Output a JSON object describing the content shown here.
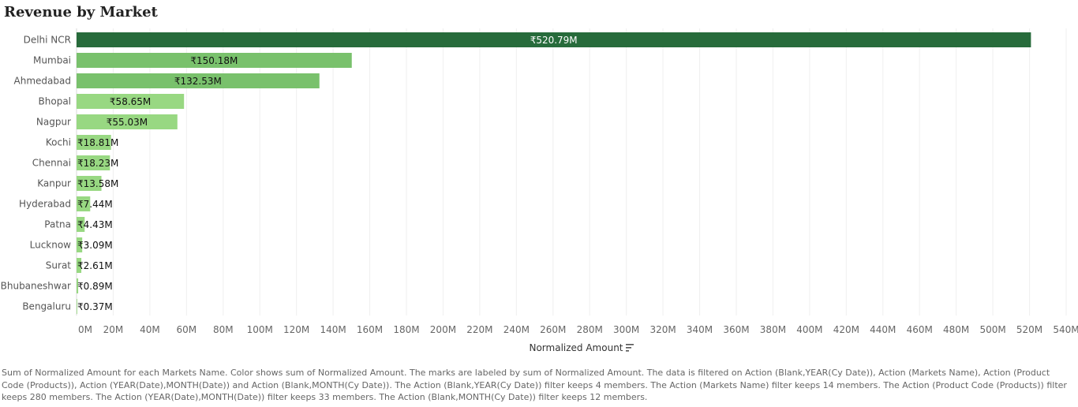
{
  "chart_data": {
    "type": "bar",
    "orientation": "horizontal",
    "title": "Revenue by Market",
    "categories": [
      "Delhi NCR",
      "Mumbai",
      "Ahmedabad",
      "Bhopal",
      "Nagpur",
      "Kochi",
      "Chennai",
      "Kanpur",
      "Hyderabad",
      "Patna",
      "Lucknow",
      "Surat",
      "Bhubaneshwar",
      "Bengaluru"
    ],
    "values": [
      520.79,
      150.18,
      132.53,
      58.65,
      55.03,
      18.81,
      18.23,
      13.58,
      7.44,
      4.43,
      3.09,
      2.61,
      0.89,
      0.37
    ],
    "data_labels": [
      "₹520.79M",
      "₹150.18M",
      "₹132.53M",
      "₹58.65M",
      "₹55.03M",
      "₹18.81M",
      "₹18.23M",
      "₹13.58M",
      "₹7.44M",
      "₹4.43M",
      "₹3.09M",
      "₹2.61M",
      "₹0.89M",
      "₹0.37M"
    ],
    "xlabel": "Normalized Amount",
    "ylabel": "",
    "xlim": [
      0,
      540
    ],
    "xticks": [
      0,
      20,
      40,
      60,
      80,
      100,
      120,
      140,
      160,
      180,
      200,
      220,
      240,
      260,
      280,
      300,
      320,
      340,
      360,
      380,
      400,
      420,
      440,
      460,
      480,
      500,
      520,
      540
    ],
    "xtick_labels": [
      "0M",
      "20M",
      "40M",
      "60M",
      "80M",
      "100M",
      "120M",
      "140M",
      "160M",
      "180M",
      "200M",
      "220M",
      "240M",
      "260M",
      "280M",
      "300M",
      "320M",
      "340M",
      "360M",
      "380M",
      "400M",
      "420M",
      "440M",
      "460M",
      "480M",
      "500M",
      "520M",
      "540M"
    ],
    "grid": true,
    "sort_icon": "sort-descending-icon",
    "colors": {
      "high": "#276b3b",
      "mid": "#79c16c",
      "low": "#98d882",
      "grid": "#efefef",
      "label_on_dark": "#ffffff",
      "label": "#111111"
    }
  },
  "caption": "Sum of Normalized Amount for each Markets Name.  Color shows sum of Normalized Amount.  The marks are labeled by sum of Normalized Amount. The data is filtered on Action (Blank,YEAR(Cy Date)), Action (Markets Name), Action (Product Code (Products)), Action (YEAR(Date),MONTH(Date)) and Action (Blank,MONTH(Cy Date)). The Action (Blank,YEAR(Cy Date)) filter keeps 4 members. The Action (Markets Name) filter keeps 14 members. The Action (Product Code (Products)) filter keeps 280 members. The Action (YEAR(Date),MONTH(Date)) filter keeps 33 members. The Action (Blank,MONTH(Cy Date)) filter keeps 12 members."
}
